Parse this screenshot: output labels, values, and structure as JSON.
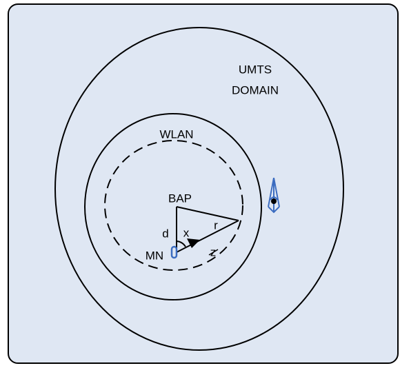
{
  "labels": {
    "umts_line1": "UMTS",
    "umts_line2": "DOMAIN",
    "wlan": "WLAN",
    "bap": "BAP",
    "r": "r",
    "d": "d",
    "x": "x",
    "mn": "MN",
    "z": "z"
  }
}
